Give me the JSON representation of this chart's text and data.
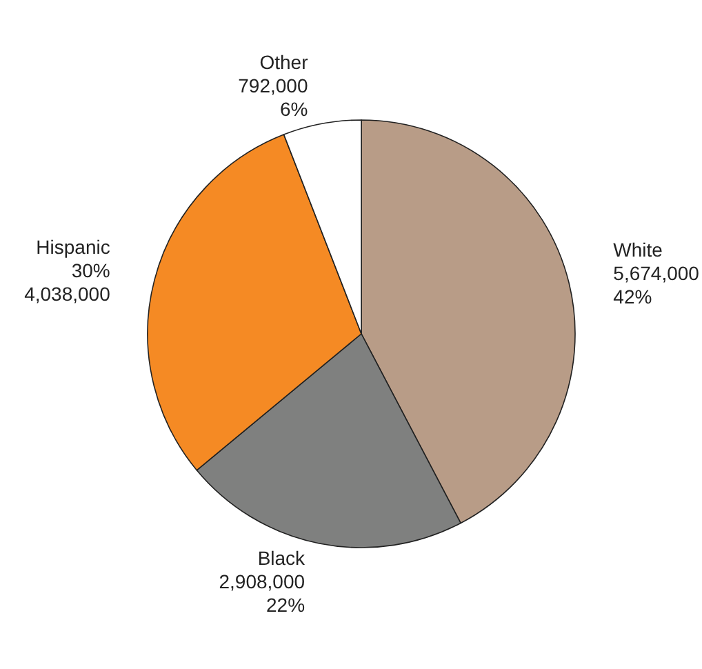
{
  "chart_data": {
    "type": "pie",
    "categories": [
      "White",
      "Black",
      "Hispanic",
      "Other"
    ],
    "values": [
      5674000,
      2908000,
      4038000,
      792000
    ],
    "colors": [
      "#b89c87",
      "#7f807f",
      "#f58a24",
      "#ffffff"
    ],
    "value_labels": [
      "5,674,000\n42%",
      "2,908,000\n22%",
      "30%\n4,038,000",
      "792,000\n6%"
    ],
    "legend": false
  }
}
